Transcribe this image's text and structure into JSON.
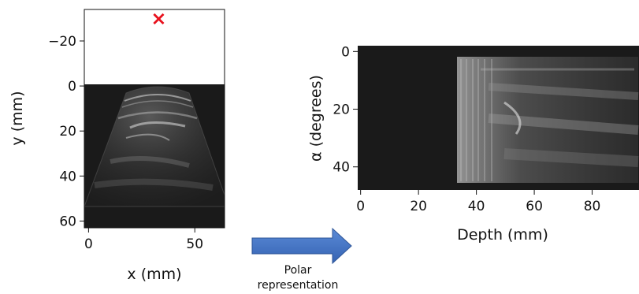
{
  "chart_data": [
    {
      "type": "image",
      "title": "",
      "xlabel": "x (mm)",
      "ylabel": "y (mm)",
      "xlim": [
        -2,
        64
      ],
      "ylim": [
        -34,
        63
      ],
      "y_inverted": true,
      "xticks": [
        0,
        50
      ],
      "yticks": [
        -20,
        0,
        20,
        40,
        60
      ],
      "marker": {
        "symbol": "×",
        "x": 33,
        "y": -30,
        "color": "#e8111d"
      },
      "image_colormap": "gray"
    },
    {
      "type": "image",
      "title": "",
      "xlabel": "Depth (mm)",
      "ylabel": "α  (degrees)",
      "xlim": [
        -1,
        97
      ],
      "ylim": [
        -2,
        48
      ],
      "y_inverted": true,
      "xticks": [
        0,
        20,
        40,
        60,
        80
      ],
      "yticks": [
        0,
        20,
        40
      ],
      "image_colormap": "gray"
    }
  ],
  "arrow": {
    "label": "Polar\nrepresentation",
    "color": "#4472c4"
  }
}
